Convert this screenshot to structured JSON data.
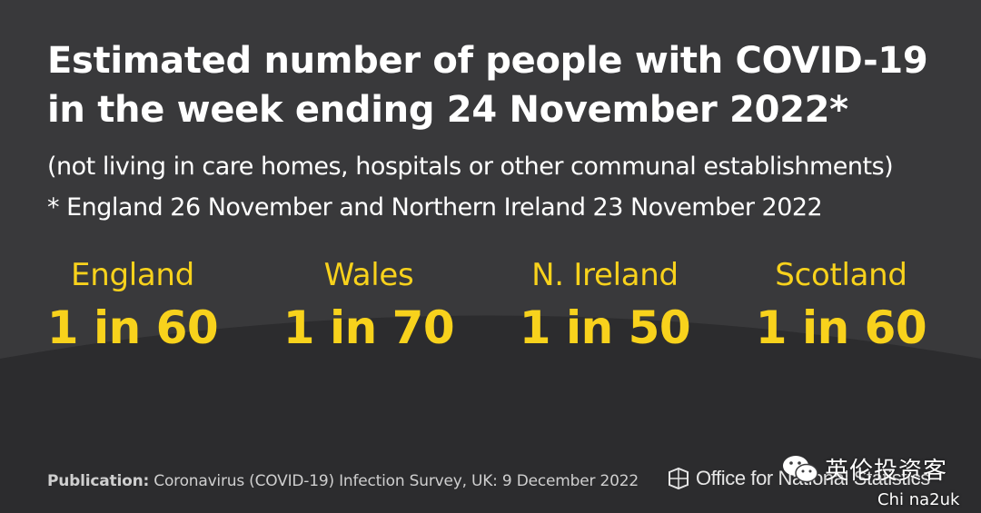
{
  "title": "Estimated number of people with COVID-19 in the week ending 24 November 2022*",
  "subtitle": "(not living in care homes, hospitals or other communal establishments)",
  "footnote": "* England 26 November and Northern Ireland 23 November 2022",
  "stats": [
    {
      "region": "England",
      "ratio": "1 in 60"
    },
    {
      "region": "Wales",
      "ratio": "1 in 70"
    },
    {
      "region": "N. Ireland",
      "ratio": "1 in 50"
    },
    {
      "region": "Scotland",
      "ratio": "1 in 60"
    }
  ],
  "publication": {
    "label": "Publication:",
    "text": "Coronavirus (COVID-19) Infection Survey, UK: 9 December 2022"
  },
  "logo": {
    "icon": "ons-logo-icon",
    "text": "Office for National Statistics"
  },
  "watermark": {
    "icon": "wechat-icon",
    "text": "英伦投资客",
    "sub": "Chi na2uk"
  },
  "colors": {
    "background": "#39393b",
    "lower_band": "#2c2c2e",
    "highlight": "#f8d21c",
    "text": "#ffffff"
  }
}
